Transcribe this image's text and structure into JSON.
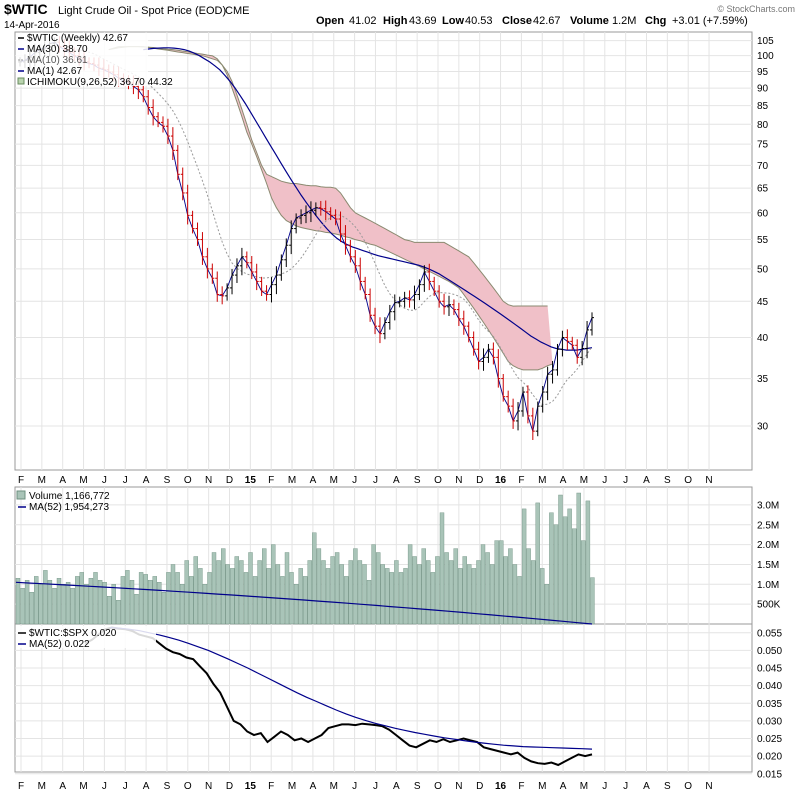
{
  "header": {
    "symbol": "$WTIC",
    "name": "Light Crude Oil - Spot Price (EOD)",
    "exchange": "CME",
    "date": "14-Apr-2016",
    "open_label": "Open",
    "open": "41.02",
    "high_label": "High",
    "high": "43.69",
    "low_label": "Low",
    "low": "40.53",
    "close_label": "Close",
    "close": "42.67",
    "volume_label": "Volume",
    "volume": "1.2M",
    "chg_label": "Chg",
    "chg": "+3.01 (+7.59%)",
    "watermark": "© StockCharts.com"
  },
  "colors": {
    "price_up": "#000000",
    "price_down": "#cc0000",
    "ma30": "#00008b",
    "ma10": "#999999",
    "cloud_fill": "#f0c0c8",
    "cloud_edge": "#8a8a70",
    "volume_bar": "#a9c4b8",
    "volume_edge": "#6d8f7f",
    "ratio_line": "#000000",
    "grid": "#e4e4e4"
  },
  "chart_data": [
    {
      "type": "candlestick",
      "panel": "price",
      "log_scale": true,
      "ylim": [
        26,
        108
      ],
      "grid": true,
      "legend": "top-left",
      "legend_entries": [
        {
          "name": "$WTIC (Weekly) 42.67"
        },
        {
          "name": "MA(30) 38.70"
        },
        {
          "name": "MA(10) 36.61"
        },
        {
          "name": "MA(1) 42.67"
        },
        {
          "name": "ICHIMOKU(9,26,52) 36.70 44.32"
        }
      ],
      "y_ticks": [
        105,
        100,
        95,
        90,
        85,
        80,
        75,
        70,
        65,
        60,
        55,
        50,
        45,
        40,
        35,
        30
      ],
      "x_tick_labels": [
        "F",
        "M",
        "A",
        "M",
        "J",
        "J",
        "A",
        "S",
        "O",
        "N",
        "D",
        "15",
        "F",
        "M",
        "A",
        "M",
        "J",
        "J",
        "A",
        "S",
        "O",
        "N",
        "D",
        "16",
        "F",
        "M",
        "A",
        "M",
        "J",
        "J",
        "A",
        "S",
        "O",
        "N"
      ],
      "x_tick_bold": [
        "15",
        "16"
      ],
      "close_series": [
        98,
        98.5,
        99.5,
        101,
        102,
        102.5,
        104,
        104.5,
        103,
        102,
        101,
        100,
        99,
        98,
        97.5,
        97,
        96,
        95.5,
        94.8,
        94,
        93,
        92,
        91.5,
        90.5,
        89.5,
        87.5,
        84.5,
        82,
        80.5,
        79.5,
        77,
        73.5,
        68,
        64,
        59.5,
        57,
        55,
        52,
        50,
        48.5,
        46,
        45.8,
        47,
        49,
        50.5,
        52,
        51,
        49.5,
        48,
        46.5,
        46,
        47.5,
        49,
        51.5,
        54,
        57,
        59,
        59.5,
        60,
        60.5,
        61,
        60.8,
        60.2,
        59.5,
        58.8,
        56,
        54,
        52,
        50.5,
        48,
        46,
        43,
        41.5,
        40.5,
        42,
        43.5,
        44.8,
        45,
        45.5,
        45.2,
        46,
        47.5,
        49.5,
        48,
        46.5,
        45,
        44.2,
        44.5,
        43.8,
        42.5,
        41.5,
        40,
        38.5,
        37,
        37.5,
        38.5,
        37.5,
        35,
        33,
        32,
        30.5,
        31.5,
        33.5,
        31,
        29.5,
        32,
        33.5,
        35.5,
        36,
        38.5,
        40,
        39.5,
        39,
        37.5,
        38.6,
        41,
        42.67
      ],
      "ma30_series": [
        102,
        102.2,
        102.4,
        102.5,
        102.6,
        102.6,
        102.5,
        102.3,
        102,
        101.5,
        100.8,
        100,
        99,
        98,
        96.8,
        95.5,
        93.8,
        92,
        90,
        87.8,
        85.6,
        83.3,
        81,
        78.8,
        76.6,
        74.5,
        72.5,
        70.5,
        68.6,
        66.8,
        65.1,
        63.5,
        62,
        60.6,
        59.3,
        58.1,
        57,
        56,
        55.2,
        54.6,
        54.1,
        53.7,
        53.4,
        53.1,
        52.8,
        52.5,
        52.2,
        52,
        51.8,
        51.6,
        51.4,
        51.2,
        51,
        50.8,
        50.6,
        50.3,
        50,
        49.6,
        49.2,
        48.7,
        48.2,
        47.7,
        47.2,
        46.7,
        46.2,
        45.7,
        45.2,
        44.7,
        44.2,
        43.7,
        43.2,
        42.7,
        42.2,
        41.7,
        41.2,
        40.7,
        40.2,
        39.8,
        39.4,
        39.1,
        38.8,
        38.6,
        38.5,
        38.4,
        38.4,
        38.4,
        38.5,
        38.6,
        38.7
      ],
      "ma30_start_index": 25,
      "cloud_upper": [
        102,
        102.5,
        103,
        103,
        103,
        103,
        103,
        103,
        102.8,
        102.5,
        102.2,
        102,
        101.8,
        101.5,
        101.2,
        101,
        100.7,
        100.5,
        100.2,
        100,
        99.5,
        99,
        98.5,
        97,
        95,
        92,
        88,
        84,
        80,
        76,
        73,
        70,
        68,
        67.5,
        67,
        66.5,
        66.2,
        66,
        66,
        65.8,
        65.6,
        65.5,
        65.5,
        65.3,
        65.2,
        65.2,
        65,
        64,
        62.5,
        61,
        60,
        59.5,
        59,
        58.5,
        58,
        57.5,
        57,
        56.5,
        56,
        55.5,
        55,
        54.8,
        54.5,
        54.5,
        54.5,
        54.5,
        54.5,
        54.5,
        54.5,
        54,
        53.5,
        53,
        52.5,
        52,
        51,
        50,
        49,
        48,
        47,
        46,
        45,
        44.5,
        44.3,
        44.32,
        44.32,
        44.32,
        44.32,
        44.32,
        44.32,
        44.32
      ],
      "cloud_lower": [
        102,
        102.3,
        102.6,
        102.8,
        103,
        103,
        103,
        102.9,
        102.8,
        102.7,
        102.5,
        102.3,
        102.1,
        102,
        101.8,
        101.5,
        101.3,
        101,
        100.7,
        100.5,
        100.2,
        100,
        99,
        97,
        94,
        90,
        86,
        82,
        78,
        75,
        72,
        69,
        66,
        63,
        61,
        59.5,
        58.5,
        58,
        57.5,
        57.2,
        57,
        56.8,
        56.6,
        56.5,
        56.3,
        56.2,
        56,
        55.8,
        55.5,
        55.3,
        55,
        54.8,
        54.5,
        54.2,
        54,
        53.6,
        53.2,
        52.8,
        52.4,
        52,
        51.6,
        51.2,
        50.8,
        50.4,
        50,
        49.6,
        49.2,
        48.8,
        48.4,
        48,
        47.5,
        47,
        46,
        45,
        44,
        43,
        42,
        41,
        40,
        39,
        38,
        37,
        36.5,
        36.2,
        36,
        36,
        36,
        36,
        36.2,
        36.5,
        36.7
      ],
      "cloud_start_index": 18
    },
    {
      "type": "bar",
      "panel": "volume",
      "title": "Volume 1,166,772",
      "legend_entries": [
        {
          "name": "MA(52) 1,954,273"
        }
      ],
      "ylim": [
        0,
        3300000
      ],
      "y_ticks": [
        3000000,
        2500000,
        2000000,
        1500000,
        1000000,
        500000
      ],
      "y_tick_labels": [
        "3.0M",
        "2.5M",
        "2.0M",
        "1.5M",
        "1.0M",
        "500K"
      ],
      "values": [
        1.15,
        0.9,
        1.1,
        0.8,
        1.2,
        1.0,
        1.35,
        1.1,
        0.9,
        1.15,
        1.0,
        1.05,
        0.9,
        1.2,
        1.3,
        1.0,
        1.15,
        1.3,
        1.1,
        1.05,
        0.7,
        1.0,
        0.6,
        1.2,
        1.35,
        1.1,
        0.75,
        1.3,
        1.25,
        1.1,
        1.2,
        1.05,
        0.8,
        1.3,
        1.5,
        1.3,
        1.0,
        1.6,
        1.2,
        1.7,
        1.4,
        1.0,
        1.3,
        1.8,
        1.6,
        1.9,
        1.5,
        1.4,
        1.7,
        1.6,
        1.3,
        1.8,
        1.2,
        1.6,
        1.9,
        1.4,
        2.0,
        1.5,
        1.2,
        1.8,
        1.3,
        1.0,
        1.4,
        1.2,
        1.6,
        2.3,
        1.9,
        1.6,
        1.4,
        1.7,
        1.8,
        1.5,
        1.2,
        1.6,
        1.9,
        1.6,
        1.5,
        1.1,
        2.0,
        1.8,
        1.5,
        1.4,
        1.3,
        1.6,
        1.3,
        1.4,
        2.0,
        1.7,
        1.5,
        1.9,
        1.6,
        1.3,
        1.7,
        2.8,
        1.8,
        1.6,
        1.9,
        1.4,
        1.7,
        1.5,
        1.4,
        1.6,
        2.0,
        1.8,
        1.5,
        2.1,
        2.1,
        1.7,
        1.9,
        1.5,
        1.2,
        2.9,
        1.9,
        1.6,
        3.05,
        1.4,
        1.0,
        2.8,
        2.5,
        3.25,
        2.7,
        2.9,
        2.4,
        3.3,
        2.1,
        3.1,
        1.17
      ],
      "value_units": "millions",
      "ma52": {
        "start": 1.05,
        "end": 1.954273
      }
    },
    {
      "type": "line",
      "panel": "ratio",
      "title": "$WTIC:$SPX 0.020",
      "legend_entries": [
        {
          "name": "MA(52) 0.022"
        }
      ],
      "ylim": [
        0.0155,
        0.0575
      ],
      "y_ticks": [
        0.055,
        0.05,
        0.045,
        0.04,
        0.035,
        0.03,
        0.025,
        0.02,
        0.015
      ],
      "y_tick_labels": [
        "0.055",
        "0.050",
        "0.045",
        "0.040",
        "0.035",
        "0.030",
        "0.025",
        "0.020",
        "0.015"
      ],
      "values": [
        0.052,
        0.053,
        0.0545,
        0.056,
        0.0565,
        0.0562,
        0.056,
        0.0555,
        0.0545,
        0.054,
        0.0535,
        0.052,
        0.0505,
        0.0495,
        0.049,
        0.048,
        0.0475,
        0.0455,
        0.0435,
        0.0405,
        0.038,
        0.034,
        0.03,
        0.029,
        0.027,
        0.026,
        0.0265,
        0.024,
        0.0255,
        0.027,
        0.026,
        0.0245,
        0.025,
        0.024,
        0.025,
        0.026,
        0.028,
        0.0285,
        0.029,
        0.029,
        0.0288,
        0.0292,
        0.029,
        0.0288,
        0.0285,
        0.0275,
        0.026,
        0.0245,
        0.023,
        0.0225,
        0.0235,
        0.0245,
        0.024,
        0.0248,
        0.024,
        0.0245,
        0.025,
        0.0245,
        0.024,
        0.0225,
        0.022,
        0.0215,
        0.021,
        0.0205,
        0.021,
        0.0195,
        0.0185,
        0.018,
        0.0178,
        0.0182,
        0.0175,
        0.0185,
        0.0195,
        0.0205,
        0.02,
        0.0205
      ],
      "ma52": [
        0.0565,
        0.0563,
        0.056,
        0.0556,
        0.055,
        0.0544,
        0.0537,
        0.0529,
        0.052,
        0.051,
        0.05,
        0.0488,
        0.0476,
        0.0463,
        0.045,
        0.0436,
        0.0422,
        0.0408,
        0.0394,
        0.038,
        0.0367,
        0.0355,
        0.0343,
        0.0331,
        0.032,
        0.031,
        0.0301,
        0.0293,
        0.0286,
        0.0279,
        0.0273,
        0.0267,
        0.0262,
        0.0257,
        0.0252,
        0.0248,
        0.0244,
        0.024,
        0.0237,
        0.0234,
        0.0231,
        0.0229,
        0.0227,
        0.0226,
        0.0225,
        0.0224,
        0.0223,
        0.0222,
        0.0221,
        0.022
      ]
    }
  ]
}
